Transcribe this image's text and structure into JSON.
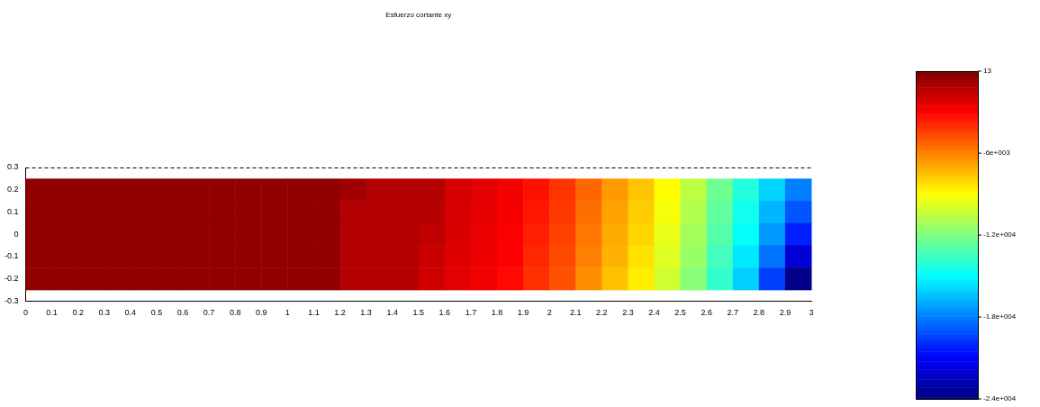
{
  "chart_data": {
    "type": "heatmap",
    "title": "Esfuerzo cortante xy",
    "x": [
      0.05,
      0.15,
      0.25,
      0.35,
      0.45,
      0.55,
      0.65,
      0.75,
      0.85,
      0.95,
      1.05,
      1.15,
      1.25,
      1.35,
      1.45,
      1.55,
      1.65,
      1.75,
      1.85,
      1.95,
      2.05,
      2.15,
      2.25,
      2.35,
      2.45,
      2.55,
      2.65,
      2.75,
      2.85,
      2.95
    ],
    "y": [
      0.2,
      0.1,
      0,
      -0.1,
      -0.2
    ],
    "xlim": [
      0,
      3
    ],
    "xticks": [
      0,
      0.1,
      0.2,
      0.3,
      0.4,
      0.5,
      0.6,
      0.7,
      0.8,
      0.9,
      1,
      1.1,
      1.2,
      1.3,
      1.4,
      1.5,
      1.6,
      1.7,
      1.8,
      1.9,
      2,
      2.1,
      2.2,
      2.3,
      2.4,
      2.5,
      2.6,
      2.7,
      2.8,
      2.9,
      3
    ],
    "ylim": [
      -0.3,
      0.3
    ],
    "yticks": [
      -0.3,
      -0.2,
      -0.1,
      0,
      0.1,
      0.2,
      0.3
    ],
    "clim": [
      -24000,
      13
    ],
    "cticks": [
      13,
      {
        "value": -6000,
        "label": "-6e+003"
      },
      {
        "value": -12000,
        "label": "-1.2e+004"
      },
      {
        "value": -18000,
        "label": "-1.8e+004"
      },
      {
        "value": -24000,
        "label": "-2.4e+004"
      }
    ],
    "cells": [
      [
        -400,
        -400,
        -400,
        -400,
        -400,
        -400,
        -400,
        -400,
        -400,
        -400,
        -400,
        -400,
        -800,
        -1200,
        -1200,
        -1200,
        -2000,
        -2300,
        -2700,
        -3400,
        -4200,
        -5400,
        -6600,
        -7600,
        -9000,
        -10600,
        -12400,
        -14200,
        -16000,
        -18000
      ],
      [
        -400,
        -400,
        -400,
        -400,
        -400,
        -400,
        -400,
        -400,
        -400,
        -400,
        -400,
        -400,
        -1200,
        -1200,
        -1200,
        -1300,
        -2050,
        -2400,
        -2800,
        -3500,
        -4300,
        -5600,
        -6800,
        -7800,
        -9200,
        -10800,
        -12700,
        -14600,
        -16700,
        -19000
      ],
      [
        -400,
        -400,
        -400,
        -400,
        -400,
        -400,
        -400,
        -400,
        -400,
        -400,
        -400,
        -400,
        -1200,
        -1200,
        -1200,
        -1500,
        -2100,
        -2500,
        -2900,
        -3700,
        -4500,
        -5800,
        -7000,
        -8000,
        -9500,
        -11100,
        -13000,
        -14900,
        -17400,
        -20300
      ],
      [
        -400,
        -400,
        -400,
        -400,
        -400,
        -400,
        -400,
        -400,
        -400,
        -400,
        -400,
        -400,
        -1200,
        -1200,
        -1200,
        -1700,
        -2200,
        -2600,
        -3000,
        -3900,
        -4700,
        -6000,
        -7200,
        -8300,
        -9800,
        -11400,
        -13400,
        -15500,
        -18300,
        -22000
      ],
      [
        -400,
        -400,
        -400,
        -400,
        -400,
        -400,
        -400,
        -400,
        -400,
        -400,
        -400,
        -400,
        -1200,
        -1200,
        -1200,
        -1900,
        -2300,
        -2700,
        -3200,
        -4100,
        -4900,
        -6300,
        -7500,
        -8600,
        -10100,
        -11800,
        -13800,
        -16100,
        -19500,
        -23800
      ]
    ]
  }
}
